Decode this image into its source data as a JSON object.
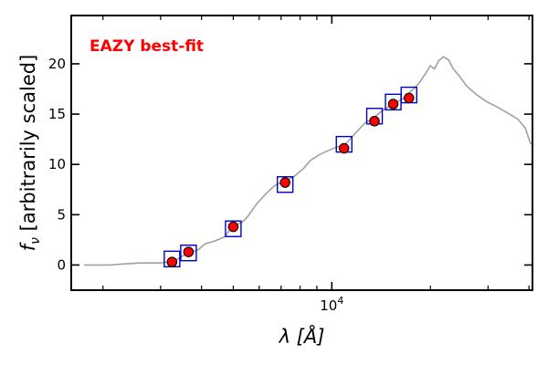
{
  "chart_data": {
    "type": "scatter",
    "title": "",
    "xlabel": "λ [Å]",
    "ylabel": "f_ν [arbitrarily scaled]",
    "xscale": "log",
    "xlim": [
      1600,
      41000
    ],
    "ylim": [
      -2.5,
      24.8
    ],
    "x_tick_labels": [
      {
        "x": 10000,
        "label": "10^4"
      }
    ],
    "x_minor_ticks": [
      2000,
      3000,
      4000,
      5000,
      6000,
      7000,
      8000,
      9000,
      20000,
      30000,
      40000
    ],
    "y_ticks": [
      0,
      5,
      10,
      15,
      20
    ],
    "grid": false,
    "annotation": {
      "text": "EAZY best-fit",
      "color": "#ff0000"
    },
    "colors": {
      "model_line": "#a0a0a0",
      "observed": "#ff0000",
      "model_box": "#0000cc"
    },
    "series": [
      {
        "type": "line",
        "values": [
          [
            1750,
            0.0
          ],
          [
            2100,
            0.0
          ],
          [
            2300,
            0.1
          ],
          [
            2600,
            0.2
          ],
          [
            3000,
            0.2
          ],
          [
            3300,
            0.4
          ],
          [
            3500,
            0.9
          ],
          [
            3700,
            1.2
          ],
          [
            3900,
            1.5
          ],
          [
            4100,
            2.1
          ],
          [
            4400,
            2.4
          ],
          [
            4700,
            2.8
          ],
          [
            5000,
            3.9
          ],
          [
            5300,
            4.2
          ],
          [
            5500,
            4.7
          ],
          [
            5900,
            6.1
          ],
          [
            6300,
            7.1
          ],
          [
            6700,
            7.9
          ],
          [
            7200,
            8.4
          ],
          [
            7600,
            8.7
          ],
          [
            8200,
            9.6
          ],
          [
            8600,
            10.4
          ],
          [
            9200,
            11.0
          ],
          [
            9800,
            11.4
          ],
          [
            10300,
            11.7
          ],
          [
            11000,
            12.0
          ],
          [
            11800,
            13.1
          ],
          [
            12600,
            14.1
          ],
          [
            13400,
            14.6
          ],
          [
            14200,
            15.3
          ],
          [
            15000,
            15.8
          ],
          [
            15800,
            16.2
          ],
          [
            16600,
            16.6
          ],
          [
            17500,
            17.3
          ],
          [
            18500,
            18.1
          ],
          [
            19300,
            19.0
          ],
          [
            20000,
            19.8
          ],
          [
            20600,
            19.5
          ],
          [
            21200,
            20.3
          ],
          [
            21900,
            20.7
          ],
          [
            22700,
            20.4
          ],
          [
            23500,
            19.5
          ],
          [
            24500,
            18.8
          ],
          [
            25800,
            17.8
          ],
          [
            27500,
            17.0
          ],
          [
            29500,
            16.3
          ],
          [
            32000,
            15.7
          ],
          [
            34500,
            15.1
          ],
          [
            37000,
            14.5
          ],
          [
            39000,
            13.6
          ],
          [
            40500,
            12.0
          ]
        ]
      },
      {
        "type": "scatter",
        "marker": "circle",
        "values": [
          [
            3250,
            0.3
          ],
          [
            3650,
            1.3
          ],
          [
            5000,
            3.8
          ],
          [
            7200,
            8.2
          ],
          [
            10900,
            11.6
          ],
          [
            13500,
            14.3
          ],
          [
            15400,
            16.0
          ],
          [
            17200,
            16.6
          ]
        ]
      },
      {
        "type": "scatter",
        "marker": "square",
        "values": [
          [
            3250,
            0.6
          ],
          [
            3650,
            1.2
          ],
          [
            5000,
            3.6
          ],
          [
            7200,
            8.0
          ],
          [
            10900,
            12.0
          ],
          [
            13500,
            14.8
          ],
          [
            15400,
            16.2
          ],
          [
            17200,
            16.9
          ]
        ]
      }
    ]
  }
}
